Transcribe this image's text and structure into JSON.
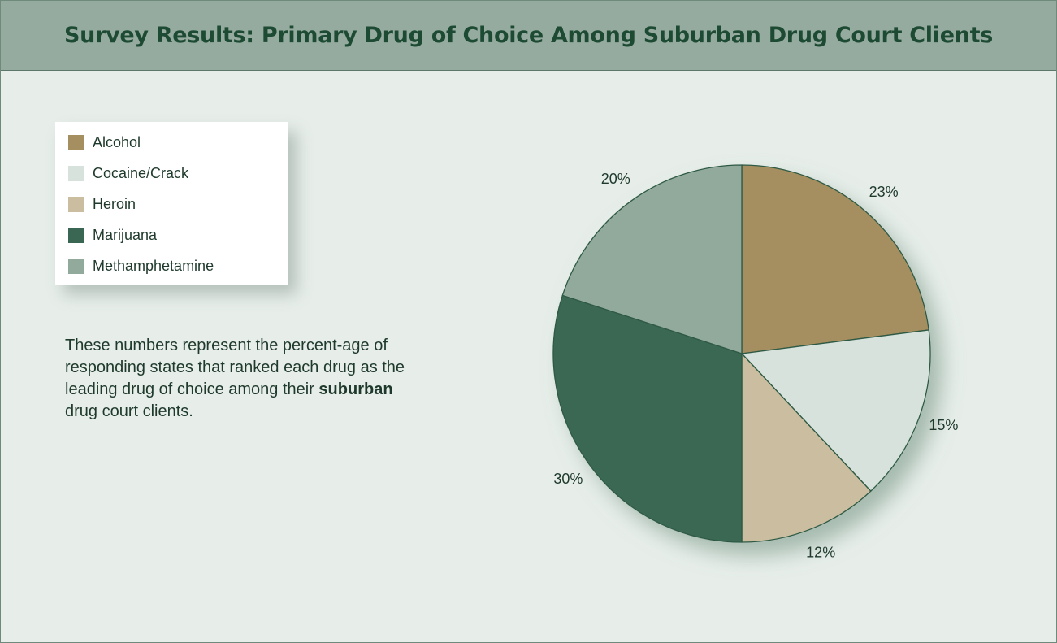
{
  "chart_data": {
    "type": "pie",
    "title": "Survey Results: Primary Drug of Choice Among Suburban Drug Court Clients",
    "categories": [
      "Alcohol",
      "Cocaine/Crack",
      "Heroin",
      "Marijuana",
      "Methamphetamine"
    ],
    "values": [
      23,
      15,
      12,
      30,
      20
    ],
    "labels": [
      "23%",
      "15%",
      "12%",
      "30%",
      "20%"
    ],
    "colors": [
      "#a58e60",
      "#d6e2db",
      "#cbbea0",
      "#3a6753",
      "#91aa9c"
    ],
    "legend_position": "top-left",
    "start": "12 o'clock",
    "direction": "clockwise"
  },
  "caption": {
    "prefix": "These numbers represent the percent-age of responding states that ranked each drug as the leading drug of choice among their ",
    "emphasis": "suburban",
    "suffix": " drug court clients."
  }
}
